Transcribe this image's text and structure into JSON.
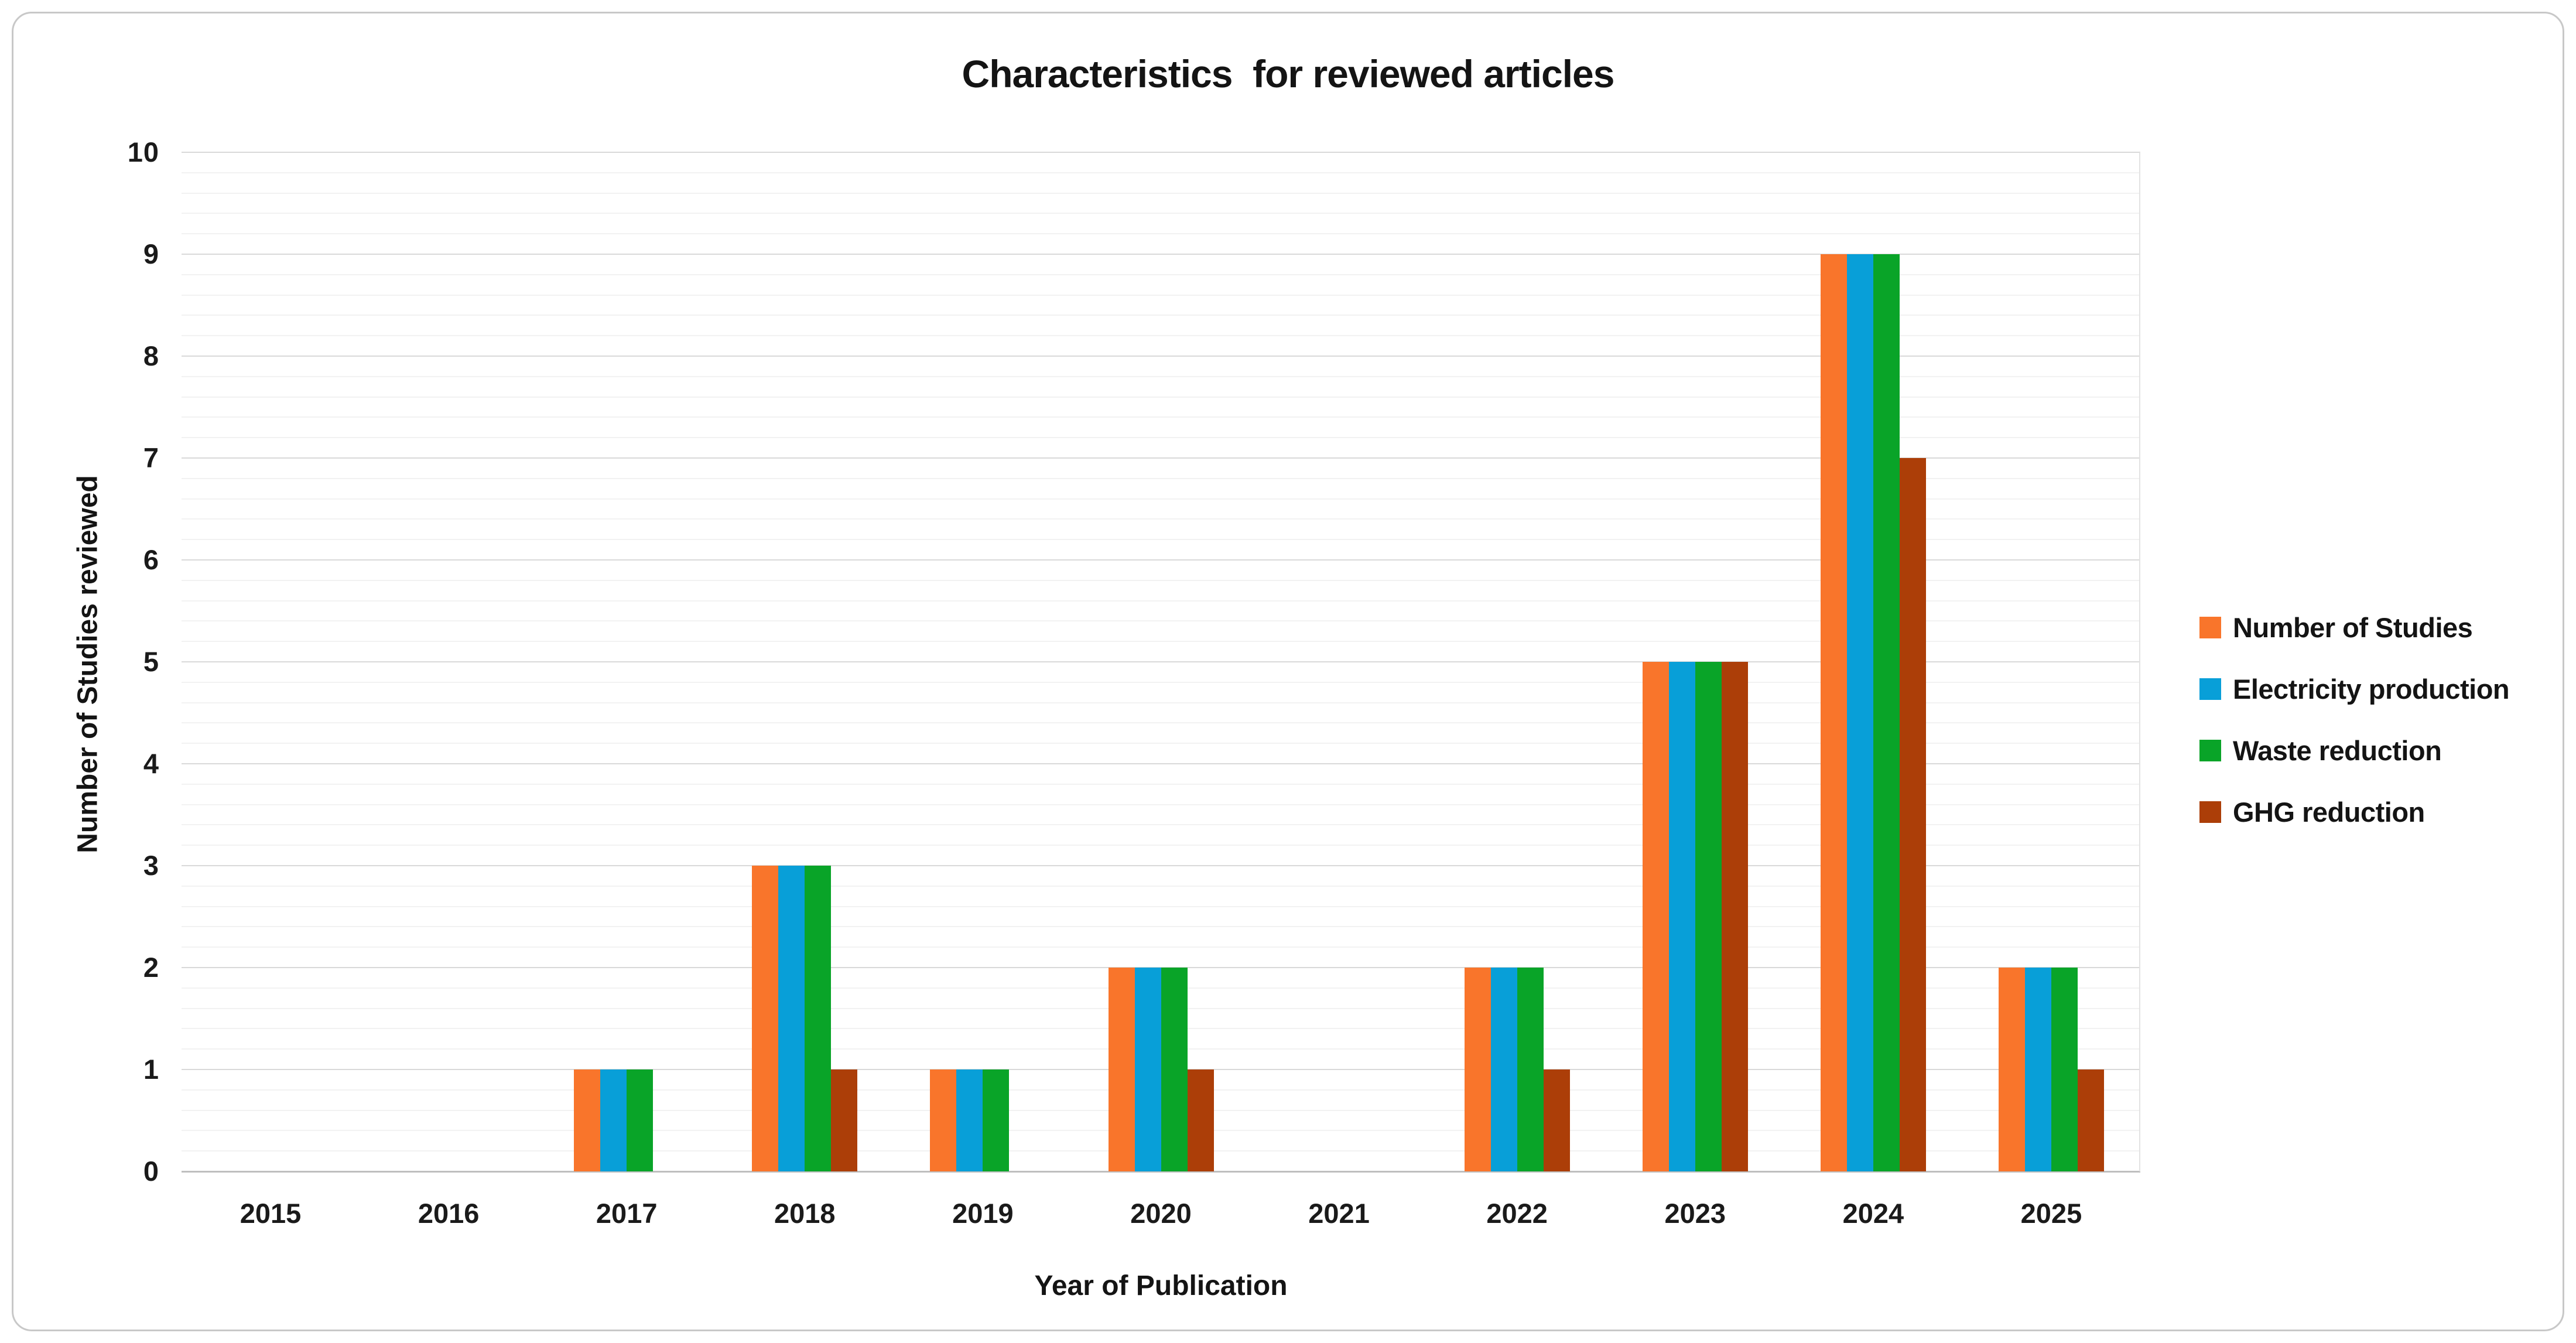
{
  "chart_data": {
    "type": "bar",
    "title": "Characteristics  for reviewed articles",
    "xlabel": "Year of Publication",
    "ylabel": "Number of Studies reviewed",
    "categories": [
      "2015",
      "2016",
      "2017",
      "2018",
      "2019",
      "2020",
      "2021",
      "2022",
      "2023",
      "2024",
      "2025"
    ],
    "series": [
      {
        "name": "Number of Studies",
        "color": "#F9752B",
        "values": [
          0,
          0,
          1,
          3,
          1,
          2,
          0,
          2,
          5,
          9,
          2
        ]
      },
      {
        "name": "Electricity production",
        "color": "#089FD8",
        "values": [
          0,
          0,
          1,
          3,
          1,
          2,
          0,
          2,
          5,
          9,
          2
        ]
      },
      {
        "name": "Waste reduction",
        "color": "#09A428",
        "values": [
          0,
          0,
          1,
          3,
          1,
          2,
          0,
          2,
          5,
          9,
          2
        ]
      },
      {
        "name": "GHG reduction",
        "color": "#AC3E08",
        "values": [
          0,
          0,
          0,
          1,
          0,
          1,
          0,
          1,
          5,
          7,
          1
        ]
      }
    ],
    "ylim": [
      0,
      10
    ],
    "y_major_unit": 1,
    "y_minor_unit": 0.2,
    "y_tick_labels": [
      "0",
      "1",
      "2",
      "3",
      "4",
      "5",
      "6",
      "7",
      "8",
      "9",
      "10"
    ],
    "grid": {
      "major_color": "#D9D9D9",
      "minor_color": "#F2F2F2",
      "axis_color": "#BFBFBF"
    },
    "legend_position": "right",
    "gridlines": "on"
  }
}
